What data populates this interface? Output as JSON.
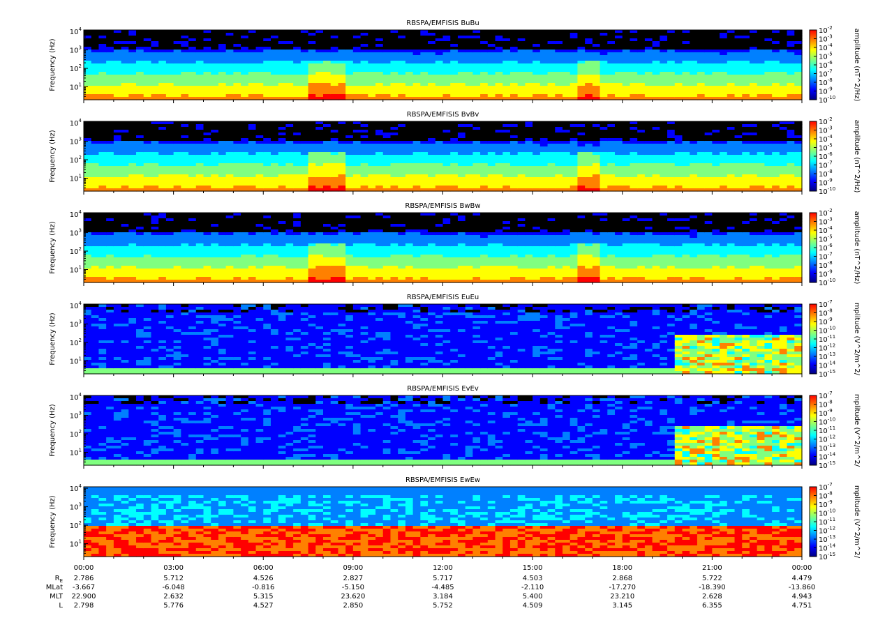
{
  "chart_data": {
    "type": "heatmap",
    "time_axis": {
      "ticks": [
        "00:00",
        "03:00",
        "06:00",
        "09:00",
        "12:00",
        "15:00",
        "18:00",
        "21:00",
        "00:00"
      ]
    },
    "panels": [
      {
        "title": "RBSPA/EMFISIS  BuBu",
        "ylabel": "Frequency (Hz)",
        "yscale": "log",
        "ylim": [
          2,
          12000
        ],
        "yticks": [
          {
            "b": "10",
            "e": "4"
          },
          {
            "b": "10",
            "e": "3"
          },
          {
            "b": "10",
            "e": "2"
          },
          {
            "b": "10",
            "e": "1"
          }
        ],
        "colorbar_label": "amplitude (nT^2/Hz)",
        "colorbar_ticks": [
          {
            "b": "10",
            "e": "-2"
          },
          {
            "b": "10",
            "e": "-3"
          },
          {
            "b": "10",
            "e": "-4"
          },
          {
            "b": "10",
            "e": "-5"
          },
          {
            "b": "10",
            "e": "-6"
          },
          {
            "b": "10",
            "e": "-7"
          },
          {
            "b": "10",
            "e": "-8"
          },
          {
            "b": "10",
            "e": "-9"
          },
          {
            "b": "10",
            "e": "-10"
          }
        ]
      },
      {
        "title": "RBSPA/EMFISIS  BvBv",
        "ylabel": "Frequency (Hz)",
        "yscale": "log",
        "ylim": [
          2,
          12000
        ],
        "yticks": [
          {
            "b": "10",
            "e": "4"
          },
          {
            "b": "10",
            "e": "3"
          },
          {
            "b": "10",
            "e": "2"
          },
          {
            "b": "10",
            "e": "1"
          }
        ],
        "colorbar_label": "amplitude (nT^2/Hz)",
        "colorbar_ticks": [
          {
            "b": "10",
            "e": "-2"
          },
          {
            "b": "10",
            "e": "-3"
          },
          {
            "b": "10",
            "e": "-4"
          },
          {
            "b": "10",
            "e": "-5"
          },
          {
            "b": "10",
            "e": "-6"
          },
          {
            "b": "10",
            "e": "-7"
          },
          {
            "b": "10",
            "e": "-8"
          },
          {
            "b": "10",
            "e": "-9"
          },
          {
            "b": "10",
            "e": "-10"
          }
        ]
      },
      {
        "title": "RBSPA/EMFISIS  BwBw",
        "ylabel": "Frequency (Hz)",
        "yscale": "log",
        "ylim": [
          2,
          12000
        ],
        "yticks": [
          {
            "b": "10",
            "e": "4"
          },
          {
            "b": "10",
            "e": "3"
          },
          {
            "b": "10",
            "e": "2"
          },
          {
            "b": "10",
            "e": "1"
          }
        ],
        "colorbar_label": "amplitude (nT^2/Hz)",
        "colorbar_ticks": [
          {
            "b": "10",
            "e": "-2"
          },
          {
            "b": "10",
            "e": "-3"
          },
          {
            "b": "10",
            "e": "-4"
          },
          {
            "b": "10",
            "e": "-5"
          },
          {
            "b": "10",
            "e": "-6"
          },
          {
            "b": "10",
            "e": "-7"
          },
          {
            "b": "10",
            "e": "-8"
          },
          {
            "b": "10",
            "e": "-9"
          },
          {
            "b": "10",
            "e": "-10"
          }
        ]
      },
      {
        "title": "RBSPA/EMFISIS  EuEu",
        "ylabel": "Frequency (Hz)",
        "yscale": "log",
        "ylim": [
          2,
          12000
        ],
        "yticks": [
          {
            "b": "10",
            "e": "4"
          },
          {
            "b": "10",
            "e": "3"
          },
          {
            "b": "10",
            "e": "2"
          },
          {
            "b": "10",
            "e": "1"
          }
        ],
        "colorbar_label": "mplitude (V^2/m^2/",
        "colorbar_ticks": [
          {
            "b": "10",
            "e": "-7"
          },
          {
            "b": "10",
            "e": "-8"
          },
          {
            "b": "10",
            "e": "-9"
          },
          {
            "b": "10",
            "e": "-10"
          },
          {
            "b": "10",
            "e": "-11"
          },
          {
            "b": "10",
            "e": "-12"
          },
          {
            "b": "10",
            "e": "-13"
          },
          {
            "b": "10",
            "e": "-14"
          },
          {
            "b": "10",
            "e": "-15"
          }
        ]
      },
      {
        "title": "RBSPA/EMFISIS  EvEv",
        "ylabel": "Frequency (Hz)",
        "yscale": "log",
        "ylim": [
          2,
          12000
        ],
        "yticks": [
          {
            "b": "10",
            "e": "4"
          },
          {
            "b": "10",
            "e": "3"
          },
          {
            "b": "10",
            "e": "2"
          },
          {
            "b": "10",
            "e": "1"
          }
        ],
        "colorbar_label": "mplitude (V^2/m^2/",
        "colorbar_ticks": [
          {
            "b": "10",
            "e": "-7"
          },
          {
            "b": "10",
            "e": "-8"
          },
          {
            "b": "10",
            "e": "-9"
          },
          {
            "b": "10",
            "e": "-10"
          },
          {
            "b": "10",
            "e": "-11"
          },
          {
            "b": "10",
            "e": "-12"
          },
          {
            "b": "10",
            "e": "-13"
          },
          {
            "b": "10",
            "e": "-14"
          },
          {
            "b": "10",
            "e": "-15"
          }
        ]
      },
      {
        "title": "RBSPA/EMFISIS  EwEw",
        "ylabel": "Frequency (Hz)",
        "yscale": "log",
        "ylim": [
          2,
          12000
        ],
        "yticks": [
          {
            "b": "10",
            "e": "4"
          },
          {
            "b": "10",
            "e": "3"
          },
          {
            "b": "10",
            "e": "2"
          },
          {
            "b": "10",
            "e": "1"
          }
        ],
        "colorbar_label": "mplitude (V^2/m^2/",
        "colorbar_ticks": [
          {
            "b": "10",
            "e": "-7"
          },
          {
            "b": "10",
            "e": "-8"
          },
          {
            "b": "10",
            "e": "-9"
          },
          {
            "b": "10",
            "e": "-10"
          },
          {
            "b": "10",
            "e": "-11"
          },
          {
            "b": "10",
            "e": "-12"
          },
          {
            "b": "10",
            "e": "-13"
          },
          {
            "b": "10",
            "e": "-14"
          },
          {
            "b": "10",
            "e": "-15"
          }
        ]
      }
    ],
    "ephemeris": {
      "labels": [
        {
          "b": "R",
          "sub": "E"
        },
        {
          "b": "MLat"
        },
        {
          "b": "MLT"
        },
        {
          "b": "L"
        }
      ],
      "rows": [
        [
          "2.786",
          "5.712",
          "4.526",
          "2.827",
          "5.717",
          "4.503",
          "2.868",
          "5.722",
          "4.479"
        ],
        [
          "-3.667",
          "-6.048",
          "-0.816",
          "-5.150",
          "-4.485",
          "-2.110",
          "-17.270",
          "-18.390",
          "-13.860"
        ],
        [
          "22.900",
          "2.632",
          "5.315",
          "23.620",
          "3.184",
          "5.400",
          "23.210",
          "2.628",
          "4.943"
        ],
        [
          "2.798",
          "5.776",
          "4.527",
          "2.850",
          "5.752",
          "4.509",
          "3.145",
          "6.355",
          "4.751"
        ]
      ]
    },
    "colors": {
      "colormap": [
        "#00007f",
        "#0000ff",
        "#0080ff",
        "#00ffff",
        "#80ff80",
        "#ffff00",
        "#ff8000",
        "#ff0000"
      ],
      "no_data": "#000000"
    }
  }
}
